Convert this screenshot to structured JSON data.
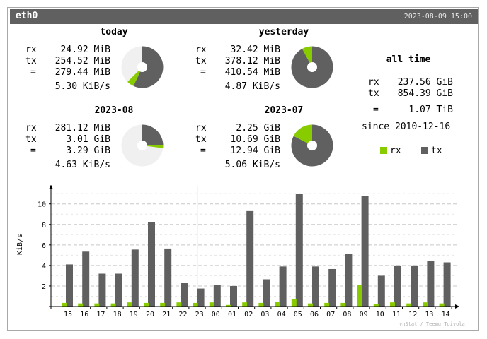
{
  "header": {
    "interface": "eth0",
    "timestamp": "2023-08-09 15:00"
  },
  "summaries": [
    {
      "title": "today",
      "rx": "24.92 MiB",
      "tx": "254.52 MiB",
      "total": "279.44 MiB",
      "rate": "5.30 KiB/s",
      "pie": {
        "rx_fraction": 0.089,
        "tx_fraction": 0.911,
        "period_fraction": 0.625
      }
    },
    {
      "title": "yesterday",
      "rx": "32.42 MiB",
      "tx": "378.12 MiB",
      "total": "410.54 MiB",
      "rate": "4.87 KiB/s",
      "pie": {
        "rx_fraction": 0.079,
        "tx_fraction": 0.921,
        "period_fraction": 1.0
      }
    },
    {
      "title": "2023-08",
      "rx": "281.12 MiB",
      "tx": "3.01 GiB",
      "total": "3.29 GiB",
      "rate": "4.63 KiB/s",
      "pie": {
        "rx_fraction": 0.083,
        "tx_fraction": 0.917,
        "period_fraction": 0.27
      }
    },
    {
      "title": "2023-07",
      "rx": "2.25 GiB",
      "tx": "10.69 GiB",
      "total": "12.94 GiB",
      "rate": "5.06 KiB/s",
      "pie": {
        "rx_fraction": 0.174,
        "tx_fraction": 0.826,
        "period_fraction": 1.0
      }
    }
  ],
  "row_labels": {
    "rx": "rx",
    "tx": "tx",
    "total": "="
  },
  "all_time": {
    "title": "all time",
    "rx": "237.56 GiB",
    "tx": "854.39 GiB",
    "total": "1.07 TiB",
    "since": "since 2010-12-16"
  },
  "legend": {
    "rx": "rx",
    "tx": "tx"
  },
  "colors": {
    "rx": "#88cc00",
    "tx": "#606060",
    "unused": "#f0f0f0",
    "title_bg": "#606060"
  },
  "chart_data": {
    "type": "bar",
    "ylabel": "KiB/s",
    "ylim": [
      0,
      11.7
    ],
    "yticks": [
      2,
      4,
      6,
      8,
      10
    ],
    "categories": [
      "15",
      "16",
      "17",
      "18",
      "19",
      "20",
      "21",
      "22",
      "23",
      "00",
      "01",
      "02",
      "03",
      "04",
      "05",
      "06",
      "07",
      "08",
      "09",
      "10",
      "11",
      "12",
      "13",
      "14"
    ],
    "series": [
      {
        "name": "rx",
        "values": [
          0.35,
          0.3,
          0.3,
          0.3,
          0.4,
          0.35,
          0.35,
          0.4,
          0.35,
          0.4,
          0.15,
          0.4,
          0.35,
          0.45,
          0.7,
          0.3,
          0.35,
          0.35,
          2.1,
          0.25,
          0.4,
          0.3,
          0.4,
          0.3
        ]
      },
      {
        "name": "tx",
        "values": [
          4.1,
          5.35,
          3.2,
          3.2,
          5.55,
          8.25,
          5.65,
          2.3,
          1.75,
          2.1,
          2.0,
          9.3,
          2.65,
          3.9,
          11.0,
          3.9,
          3.65,
          5.15,
          10.75,
          3.0,
          4.0,
          4.0,
          4.45,
          4.3
        ]
      }
    ]
  },
  "footer": "vnStat / Teemu Toivola"
}
